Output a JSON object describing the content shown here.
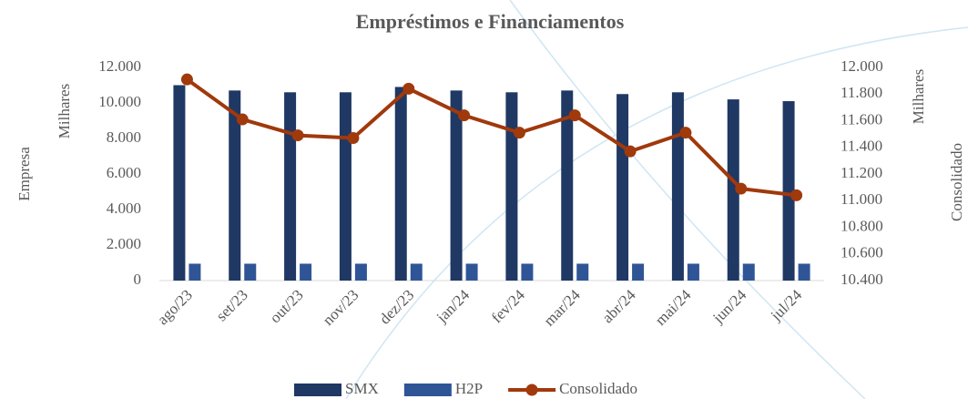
{
  "chart_data": {
    "type": "bar",
    "title": "Empréstimos e Financiamentos",
    "y_label": "Empresa",
    "y_unit": "Milhares",
    "y2_label": "Consolidado",
    "y2_unit": "Milhares",
    "categories": [
      "ago/23",
      "set/23",
      "out/23",
      "nov/23",
      "dez/23",
      "jan/24",
      "fev/24",
      "mar/24",
      "abr/24",
      "mai/24",
      "jun/24",
      "jul/24"
    ],
    "series": [
      {
        "name": "SMX",
        "type": "bar",
        "color": "#1f3864",
        "values": [
          11000,
          10700,
          10600,
          10600,
          10900,
          10700,
          10600,
          10700,
          10500,
          10600,
          10200,
          10100
        ]
      },
      {
        "name": "H2P",
        "type": "bar",
        "color": "#2f5597",
        "values": [
          950,
          950,
          950,
          950,
          950,
          950,
          950,
          950,
          950,
          950,
          950,
          950
        ]
      },
      {
        "name": "Consolidado",
        "type": "line",
        "axis": "y2",
        "color": "#a0390c",
        "values": [
          11910,
          11610,
          11490,
          11470,
          11840,
          11640,
          11510,
          11640,
          11370,
          11510,
          11090,
          11040
        ]
      }
    ],
    "ylim": [
      0,
      12000
    ],
    "yticks": [
      0,
      {
        "value": 2000,
        "label": "2.000"
      },
      {
        "value": 4000,
        "label": "4.000"
      },
      {
        "value": 6000,
        "label": "6.000"
      },
      {
        "value": 8000,
        "label": "8.000"
      },
      {
        "value": 10000,
        "label": "10.000"
      },
      {
        "value": 12000,
        "label": "12.000"
      }
    ],
    "y2lim": [
      10400,
      12000
    ],
    "y2ticks": [
      {
        "value": 10400,
        "label": "10.400"
      },
      {
        "value": 10600,
        "label": "10.600"
      },
      {
        "value": 10800,
        "label": "10.800"
      },
      {
        "value": 11000,
        "label": "11.000"
      },
      {
        "value": 11200,
        "label": "11.200"
      },
      {
        "value": 11400,
        "label": "11.400"
      },
      {
        "value": 11600,
        "label": "11.600"
      },
      {
        "value": 11800,
        "label": "11.800"
      },
      {
        "value": 12000,
        "label": "12.000"
      }
    ],
    "legend": "bottom"
  }
}
